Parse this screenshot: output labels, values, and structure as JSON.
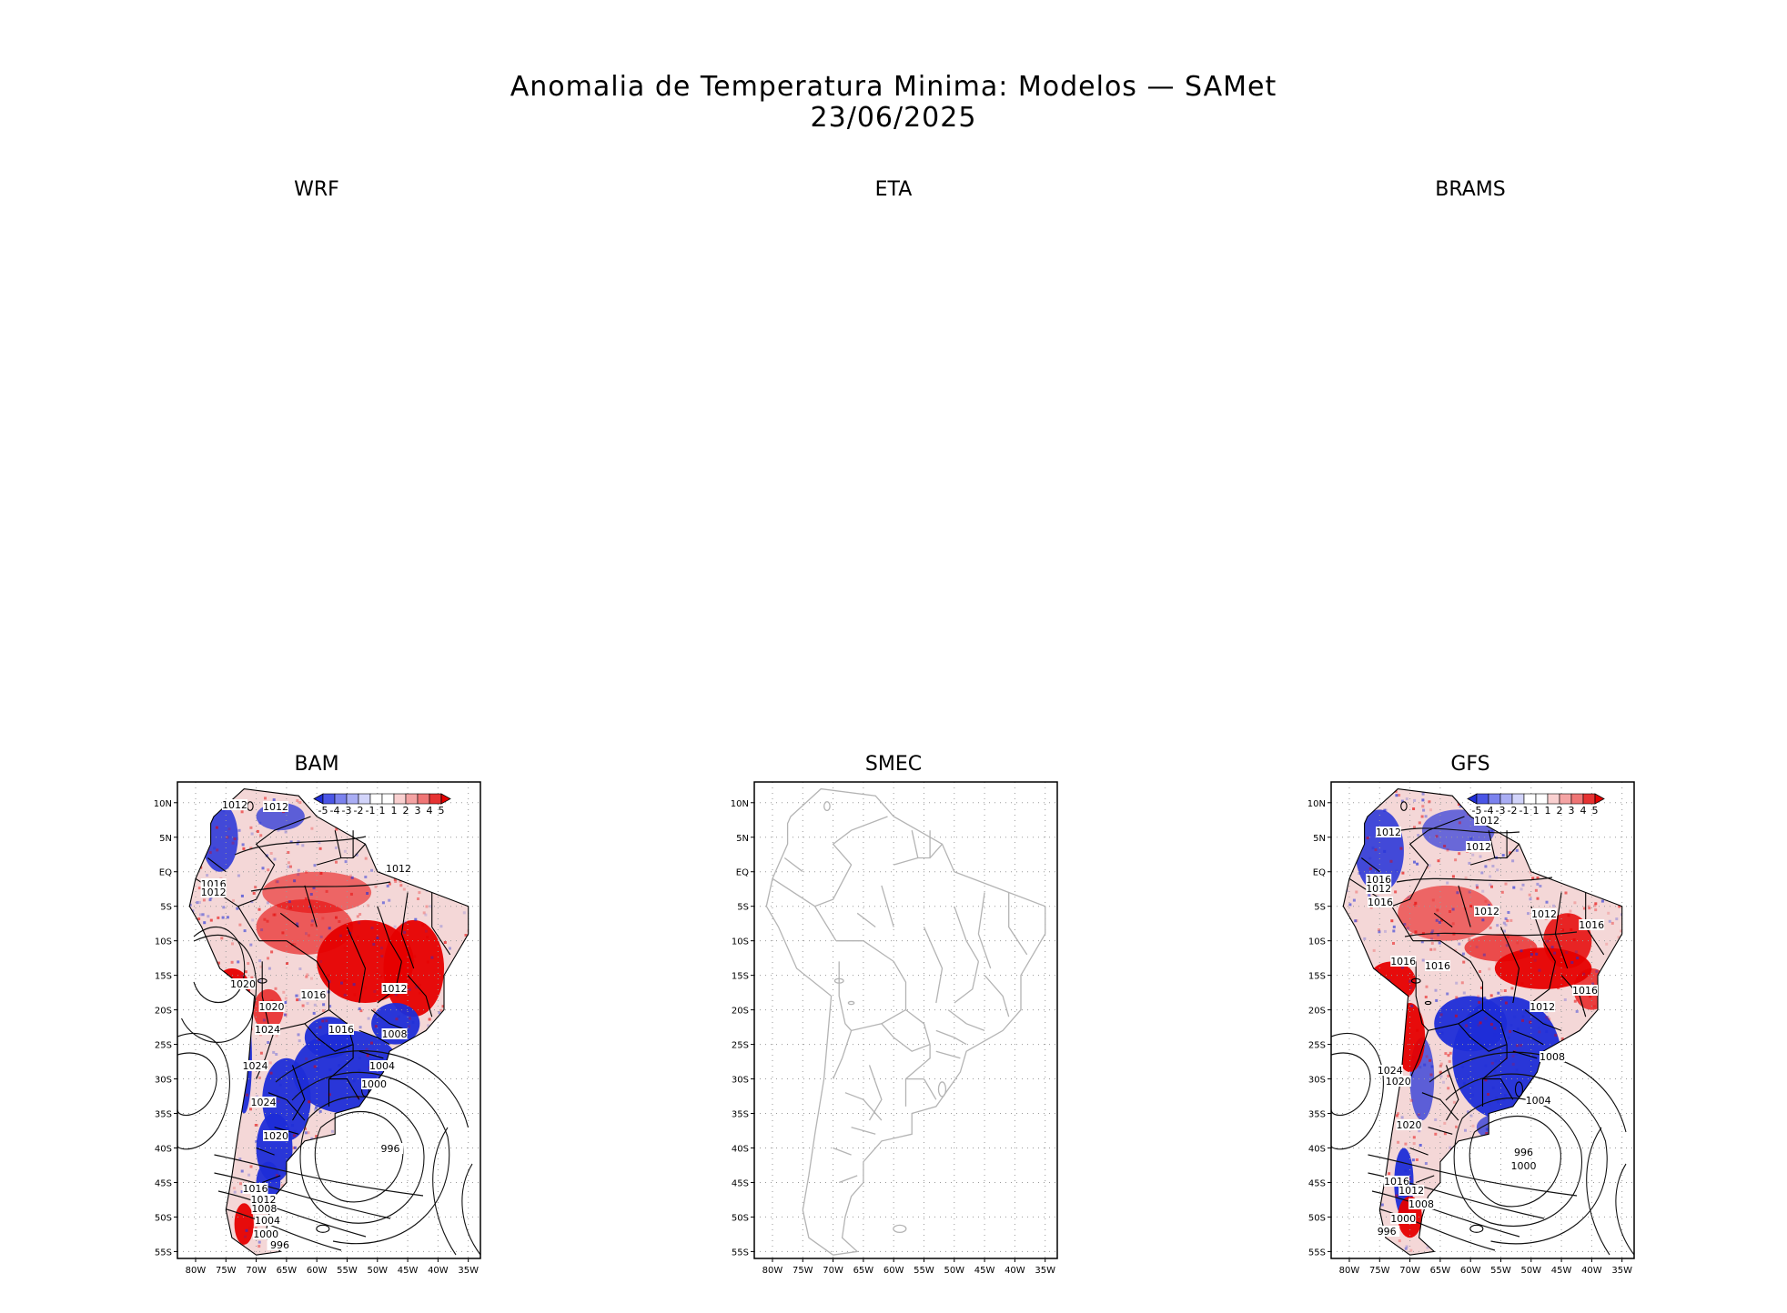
{
  "header": {
    "title": "Anomalia de Temperatura Minima: Modelos — SAMet",
    "date": "23/06/2025"
  },
  "panels": [
    {
      "label": "WRF",
      "empty": true
    },
    {
      "label": "ETA",
      "empty": true
    },
    {
      "label": "BRAMS",
      "empty": true
    },
    {
      "label": "BAM",
      "empty": false,
      "anomaly": true
    },
    {
      "label": "SMEC",
      "empty": false,
      "anomaly": false
    },
    {
      "label": "GFS",
      "empty": false,
      "anomaly": true
    }
  ],
  "map_axes": {
    "lat_ticks": [
      "10N",
      "5N",
      "EQ",
      "5S",
      "10S",
      "15S",
      "20S",
      "25S",
      "30S",
      "35S",
      "40S",
      "45S",
      "50S",
      "55S"
    ],
    "lon_ticks": [
      "80W",
      "75W",
      "70W",
      "65W",
      "60W",
      "55W",
      "50W",
      "45W",
      "40W",
      "35W"
    ]
  },
  "colorbar": {
    "labels": [
      "-5",
      "-4",
      "-3",
      "-2",
      "-1",
      "1",
      "1",
      "2",
      "3",
      "4",
      "5"
    ],
    "colors": [
      "#1e2dd8",
      "#4a55e6",
      "#7b82ee",
      "#a9adf4",
      "#d2d4fa",
      "#ffffff",
      "#ffffff",
      "#f9d0d0",
      "#f4a3a3",
      "#ef7575",
      "#e63232",
      "#e60000"
    ]
  },
  "isobars": {
    "BAM": [
      "1012",
      "1012",
      "1012",
      "1016",
      "1012",
      "1020",
      "1012",
      "1016",
      "1020",
      "1024",
      "1016",
      "1008",
      "1024",
      "1004",
      "1024",
      "1000",
      "1020",
      "996",
      "1016",
      "1012",
      "1008",
      "1004",
      "1000",
      "996"
    ],
    "GFS": [
      "1012",
      "1012",
      "1012",
      "1016",
      "1012",
      "1016",
      "1012",
      "1012",
      "1016",
      "1016",
      "1016",
      "1016",
      "1012",
      "1008",
      "1024",
      "1020",
      "1004",
      "1020",
      "996",
      "1000",
      "1016",
      "1012",
      "1008",
      "1000",
      "996"
    ]
  },
  "colors": {
    "coast_gray": "#b4b4b4",
    "coast_black": "#000000",
    "warm": "#e60000",
    "cold": "#1e2dd8"
  }
}
